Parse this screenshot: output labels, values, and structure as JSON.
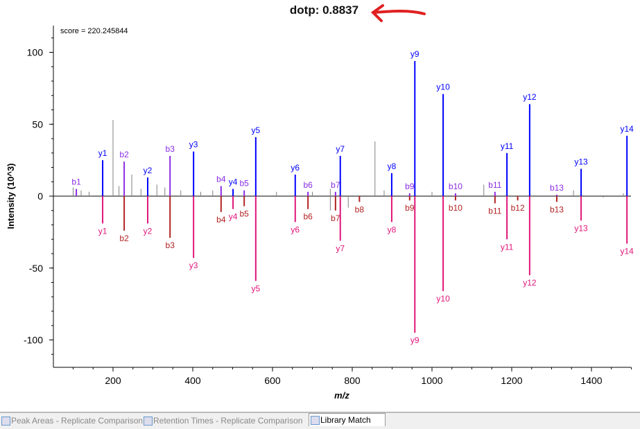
{
  "header": {
    "title": "dotp: 0.8837"
  },
  "tabs": [
    {
      "label": "Peak Areas - Replicate Comparison",
      "active": false
    },
    {
      "label": "Retention Times - Replicate Comparison",
      "active": false
    },
    {
      "label": "Library Match",
      "active": true
    }
  ],
  "colors": {
    "y_top": "#0000ff",
    "b_top": "#8a2be2",
    "y_bottom": "#e0157a",
    "b_bottom": "#b22222",
    "unmatched": "#808080",
    "arrow": "#e02020"
  },
  "chart_data": {
    "type": "bar",
    "subtype": "mirror-spectrum",
    "annotation": "score = 220.245844",
    "xlabel": "m/z",
    "ylabel": "Intensity (10^3)",
    "xlim": [
      50,
      1500
    ],
    "ylim": [
      -120,
      120
    ],
    "xticks": [
      200,
      400,
      600,
      800,
      1000,
      1200,
      1400
    ],
    "yticks": [
      -100,
      -50,
      0,
      50,
      100
    ],
    "top": [
      {
        "label": "b1",
        "mz": 108,
        "y": 5
      },
      {
        "label": "y1",
        "mz": 174,
        "y": 25
      },
      {
        "label": "b2",
        "mz": 228,
        "y": 24
      },
      {
        "label": "y2",
        "mz": 287,
        "y": 13
      },
      {
        "label": "b3",
        "mz": 343,
        "y": 28
      },
      {
        "label": "y3",
        "mz": 402,
        "y": 31
      },
      {
        "label": "b4",
        "mz": 471,
        "y": 7
      },
      {
        "label": "y4",
        "mz": 501,
        "y": 5
      },
      {
        "label": "b5",
        "mz": 529,
        "y": 4
      },
      {
        "label": "y5",
        "mz": 558,
        "y": 41
      },
      {
        "label": "y6",
        "mz": 657,
        "y": 15
      },
      {
        "label": "b6",
        "mz": 689,
        "y": 3
      },
      {
        "label": "b7",
        "mz": 758,
        "y": 3
      },
      {
        "label": "y7",
        "mz": 770,
        "y": 28
      },
      {
        "label": "y8",
        "mz": 899,
        "y": 16
      },
      {
        "label": "b9",
        "mz": 944,
        "y": 2
      },
      {
        "label": "y9",
        "mz": 957,
        "y": 94
      },
      {
        "label": "y10",
        "mz": 1028,
        "y": 71
      },
      {
        "label": "b10",
        "mz": 1059,
        "y": 2
      },
      {
        "label": "b11",
        "mz": 1158,
        "y": 3
      },
      {
        "label": "y11",
        "mz": 1188,
        "y": 30
      },
      {
        "label": "y12",
        "mz": 1245,
        "y": 64
      },
      {
        "label": "b13",
        "mz": 1313,
        "y": 1
      },
      {
        "label": "y13",
        "mz": 1374,
        "y": 19
      },
      {
        "label": "y14",
        "mz": 1489,
        "y": 42
      }
    ],
    "bottom": [
      {
        "label": "y1",
        "mz": 174,
        "y": -19
      },
      {
        "label": "b2",
        "mz": 228,
        "y": -24
      },
      {
        "label": "y2",
        "mz": 287,
        "y": -19
      },
      {
        "label": "b3",
        "mz": 343,
        "y": -29
      },
      {
        "label": "y3",
        "mz": 402,
        "y": -43
      },
      {
        "label": "b4",
        "mz": 471,
        "y": -11
      },
      {
        "label": "y4",
        "mz": 501,
        "y": -9
      },
      {
        "label": "b5",
        "mz": 529,
        "y": -7
      },
      {
        "label": "y5",
        "mz": 558,
        "y": -59
      },
      {
        "label": "y6",
        "mz": 657,
        "y": -18
      },
      {
        "label": "b6",
        "mz": 689,
        "y": -9
      },
      {
        "label": "b7",
        "mz": 758,
        "y": -10
      },
      {
        "label": "y7",
        "mz": 770,
        "y": -31
      },
      {
        "label": "b8",
        "mz": 818,
        "y": -4
      },
      {
        "label": "y8",
        "mz": 899,
        "y": -18
      },
      {
        "label": "b9",
        "mz": 944,
        "y": -3
      },
      {
        "label": "y9",
        "mz": 957,
        "y": -95
      },
      {
        "label": "y10",
        "mz": 1028,
        "y": -66
      },
      {
        "label": "b10",
        "mz": 1059,
        "y": -3
      },
      {
        "label": "b11",
        "mz": 1158,
        "y": -5
      },
      {
        "label": "y11",
        "mz": 1188,
        "y": -30
      },
      {
        "label": "b12",
        "mz": 1215,
        "y": -3
      },
      {
        "label": "y12",
        "mz": 1245,
        "y": -55
      },
      {
        "label": "b13",
        "mz": 1313,
        "y": -4
      },
      {
        "label": "y13",
        "mz": 1374,
        "y": -17
      },
      {
        "label": "y14",
        "mz": 1489,
        "y": -33
      }
    ],
    "unmatched": [
      {
        "mz": 100,
        "y": 6
      },
      {
        "mz": 120,
        "y": 4
      },
      {
        "mz": 140,
        "y": 3
      },
      {
        "mz": 200,
        "y": 53
      },
      {
        "mz": 215,
        "y": 7
      },
      {
        "mz": 247,
        "y": 15
      },
      {
        "mz": 270,
        "y": 5
      },
      {
        "mz": 310,
        "y": 8
      },
      {
        "mz": 330,
        "y": 6
      },
      {
        "mz": 370,
        "y": 4
      },
      {
        "mz": 420,
        "y": 3
      },
      {
        "mz": 450,
        "y": 4
      },
      {
        "mz": 610,
        "y": 3
      },
      {
        "mz": 700,
        "y": 3
      },
      {
        "mz": 745,
        "y": 5
      },
      {
        "mz": 857,
        "y": 38
      },
      {
        "mz": 880,
        "y": 4
      },
      {
        "mz": 1000,
        "y": 3
      },
      {
        "mz": 1130,
        "y": 8
      },
      {
        "mz": 1355,
        "y": 4
      },
      {
        "mz": 1480,
        "y": 2
      },
      {
        "mz": 745,
        "y": -10
      },
      {
        "mz": 790,
        "y": -8
      },
      {
        "mz": 1430,
        "y": -1
      }
    ]
  }
}
